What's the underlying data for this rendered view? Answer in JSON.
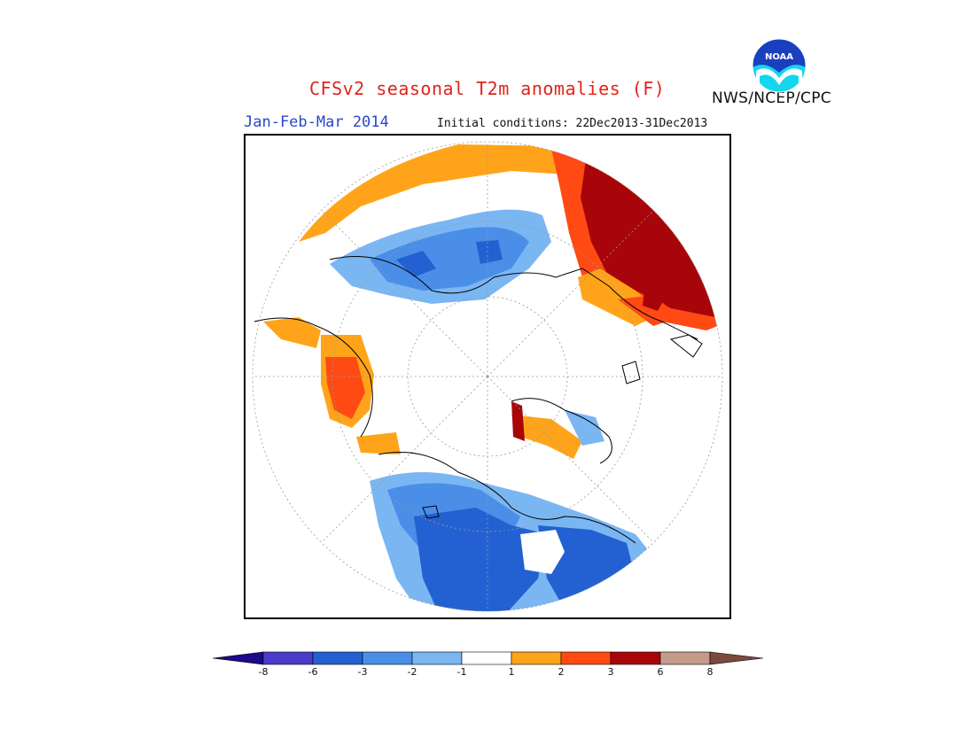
{
  "title": "CFSv2 seasonal T2m anomalies (F)",
  "period": "Jan-Feb-Mar 2014",
  "initial_conditions": "Initial conditions: 22Dec2013-31Dec2013",
  "agency": "NWS/NCEP/CPC",
  "logo_text": "NOAA",
  "colorbar": {
    "ticks": [
      "-8",
      "-6",
      "-3",
      "-2",
      "-1",
      "1",
      "2",
      "3",
      "6",
      "8"
    ],
    "colors": [
      "#1d0a8a",
      "#4a3bcb",
      "#2361d2",
      "#4a8ee8",
      "#7ab6f2",
      "#ffffff",
      "#ffa41a",
      "#ff4a14",
      "#a7050a",
      "#c49b8a",
      "#7a4a3c"
    ]
  },
  "map": {
    "projection": "polar stereographic, north pole centered",
    "colors": {
      "warm1": "#ffa41a",
      "warm2": "#ff4a14",
      "warm3": "#a7050a",
      "cool1": "#7ab6f2",
      "cool2": "#4a8ee8",
      "cool3": "#2361d2"
    }
  }
}
